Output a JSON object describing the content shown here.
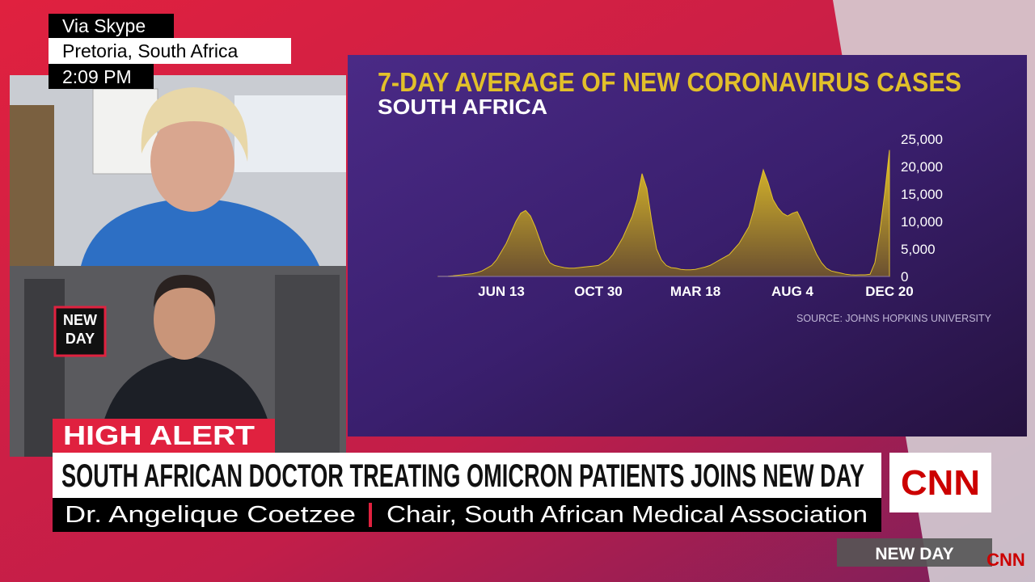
{
  "overlay": {
    "source": "Via Skype",
    "location": "Pretoria, South Africa",
    "time": "2:09 PM"
  },
  "inset_logo": {
    "line1": "NEW",
    "line2": "DAY"
  },
  "banner": {
    "tag": "HIGH ALERT",
    "headline": "SOUTH AFRICAN DOCTOR TREATING OMICRON PATIENTS JOINS NEW DAY",
    "name": "Dr. Angelique Coetzee",
    "role": "Chair, South African Medical Association"
  },
  "network": {
    "logo": "CNN",
    "program": "NEW DAY",
    "corner_logo": "CNN"
  },
  "chart_data": {
    "type": "area",
    "title": "7-DAY AVERAGE OF NEW CORONAVIRUS CASES",
    "subtitle": "SOUTH AFRICA",
    "source": "SOURCE: JOHNS HOPKINS UNIVERSITY",
    "color": "#e2c02a",
    "categories": [
      null,
      null,
      null,
      null,
      null,
      null,
      null,
      null,
      null,
      null,
      null,
      null,
      null,
      "JUN 13",
      null,
      null,
      null,
      null,
      null,
      null,
      null,
      null,
      null,
      null,
      null,
      null,
      null,
      null,
      null,
      null,
      null,
      null,
      null,
      "OCT 30",
      null,
      null,
      null,
      null,
      null,
      null,
      null,
      null,
      null,
      null,
      null,
      null,
      null,
      null,
      null,
      null,
      null,
      null,
      null,
      "MAR 18",
      null,
      null,
      null,
      null,
      null,
      null,
      null,
      null,
      null,
      null,
      null,
      null,
      null,
      null,
      null,
      null,
      null,
      null,
      null,
      "AUG 4",
      null,
      null,
      null,
      null,
      null,
      null,
      null,
      null,
      null,
      null,
      null,
      null,
      null,
      null,
      null,
      null,
      null,
      null,
      null,
      "DEC 20"
    ],
    "values": [
      10,
      20,
      50,
      100,
      200,
      300,
      400,
      500,
      700,
      1000,
      1500,
      2000,
      3000,
      4500,
      6000,
      8000,
      10000,
      11500,
      12000,
      11000,
      9000,
      6500,
      4000,
      2500,
      2000,
      1800,
      1600,
      1500,
      1500,
      1600,
      1700,
      1800,
      1900,
      2000,
      2500,
      3000,
      4000,
      5500,
      7000,
      9000,
      11000,
      14000,
      18700,
      16000,
      10000,
      5000,
      3000,
      2000,
      1600,
      1500,
      1300,
      1200,
      1200,
      1300,
      1500,
      1700,
      2000,
      2500,
      3000,
      3500,
      4000,
      5000,
      6000,
      7500,
      9000,
      12000,
      16000,
      19400,
      17000,
      14000,
      12500,
      11500,
      11000,
      11500,
      11800,
      10000,
      8000,
      6000,
      4000,
      2500,
      1500,
      1000,
      800,
      600,
      400,
      300,
      250,
      300,
      300,
      400,
      2500,
      8000,
      15000,
      23000
    ],
    "ylim": [
      0,
      25000
    ],
    "yticks": [
      0,
      {
        "value": 5000,
        "label": "5,000"
      },
      {
        "value": 10000,
        "label": "10,000"
      },
      {
        "value": 15000,
        "label": "15,000"
      },
      {
        "value": 20000,
        "label": "20,000"
      },
      {
        "value": 25000,
        "label": "25,000"
      }
    ],
    "grid": false
  }
}
